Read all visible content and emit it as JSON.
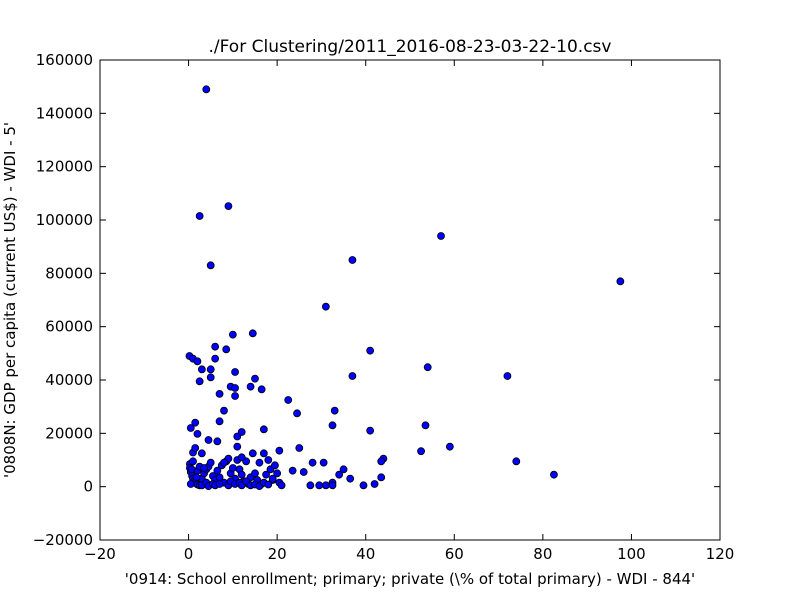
{
  "chart_data": {
    "type": "scatter",
    "title": "./For Clustering/2011_2016-08-23-03-22-10.csv",
    "xlabel": "'0914: School enrollment; primary; private  (\\% of total primary) - WDI - 844'",
    "ylabel": "'0808N: GDP per capita  (current US$) - WDI - 5'",
    "xlim": [
      -20,
      120
    ],
    "ylim": [
      -20000,
      160000
    ],
    "xticks": [
      -20,
      0,
      20,
      40,
      60,
      80,
      100,
      120
    ],
    "yticks": [
      -20000,
      0,
      20000,
      40000,
      60000,
      80000,
      100000,
      120000,
      140000,
      160000
    ],
    "xtick_labels": [
      "−20",
      "0",
      "20",
      "40",
      "60",
      "80",
      "100",
      "120"
    ],
    "ytick_labels": [
      "−20000",
      "0",
      "20000",
      "40000",
      "60000",
      "80000",
      "100000",
      "120000",
      "140000",
      "160000"
    ],
    "grid": false,
    "marker_color": "#0000ff",
    "points": [
      [
        4,
        149000
      ],
      [
        2.5,
        101500
      ],
      [
        9,
        105200
      ],
      [
        5,
        83000
      ],
      [
        37,
        85000
      ],
      [
        57,
        94000
      ],
      [
        97.5,
        77000
      ],
      [
        31,
        67500
      ],
      [
        10,
        57000
      ],
      [
        14.5,
        57500
      ],
      [
        41,
        51000
      ],
      [
        54,
        44800
      ],
      [
        37,
        41500
      ],
      [
        72,
        41500
      ],
      [
        0.2,
        49000
      ],
      [
        1,
        48000
      ],
      [
        2,
        47000
      ],
      [
        6,
        52500
      ],
      [
        6,
        48000
      ],
      [
        8.5,
        51500
      ],
      [
        3,
        44000
      ],
      [
        5,
        44000
      ],
      [
        10.5,
        43000
      ],
      [
        2.5,
        39500
      ],
      [
        5,
        41000
      ],
      [
        15,
        40500
      ],
      [
        9.5,
        37500
      ],
      [
        10.5,
        37000
      ],
      [
        14,
        37500
      ],
      [
        16.5,
        36500
      ],
      [
        7,
        34800
      ],
      [
        10.5,
        34000
      ],
      [
        22.5,
        32500
      ],
      [
        8,
        28500
      ],
      [
        24.5,
        27500
      ],
      [
        33,
        28500
      ],
      [
        41,
        21000
      ],
      [
        53.5,
        23000
      ],
      [
        32.5,
        23000
      ],
      [
        17,
        21500
      ],
      [
        0.5,
        22000
      ],
      [
        7,
        24500
      ],
      [
        1.5,
        24000
      ],
      [
        2,
        19800
      ],
      [
        6.5,
        17000
      ],
      [
        11,
        18800
      ],
      [
        4.5,
        17500
      ],
      [
        12,
        20500
      ],
      [
        11,
        15000
      ],
      [
        20.5,
        13500
      ],
      [
        25,
        14500
      ],
      [
        52.5,
        13300
      ],
      [
        59,
        15000
      ],
      [
        44,
        10500
      ],
      [
        74,
        9500
      ],
      [
        82.5,
        4500
      ],
      [
        43.5,
        9500
      ],
      [
        43.5,
        3500
      ],
      [
        35,
        6500
      ],
      [
        34,
        4500
      ],
      [
        36.5,
        3000
      ],
      [
        42,
        1000
      ],
      [
        39.5,
        500
      ],
      [
        32.5,
        1500
      ],
      [
        32.5,
        500
      ],
      [
        30.5,
        9000
      ],
      [
        28,
        9000
      ],
      [
        26,
        5500
      ],
      [
        23.5,
        6000
      ],
      [
        27.5,
        500
      ],
      [
        29.5,
        500
      ],
      [
        31,
        500
      ],
      [
        3,
        12500
      ],
      [
        1,
        12800
      ],
      [
        1.5,
        14500
      ],
      [
        0.3,
        8500
      ],
      [
        0.3,
        7000
      ],
      [
        0.5,
        5500
      ],
      [
        0.8,
        4000
      ],
      [
        1,
        3000
      ],
      [
        1.2,
        2000
      ],
      [
        1.5,
        1500
      ],
      [
        0.5,
        1000
      ],
      [
        2,
        800
      ],
      [
        2.5,
        500
      ],
      [
        3,
        3000
      ],
      [
        3.5,
        5000
      ],
      [
        4,
        6500
      ],
      [
        4.5,
        7500
      ],
      [
        5,
        9000
      ],
      [
        5.5,
        4000
      ],
      [
        6,
        2500
      ],
      [
        6.5,
        6000
      ],
      [
        7,
        3500
      ],
      [
        7.5,
        8000
      ],
      [
        8,
        1500
      ],
      [
        8.5,
        9500
      ],
      [
        9,
        10500
      ],
      [
        9.5,
        5000
      ],
      [
        10,
        7000
      ],
      [
        10.5,
        3000
      ],
      [
        11,
        10000
      ],
      [
        11.5,
        6500
      ],
      [
        12,
        4500
      ],
      [
        12.5,
        2000
      ],
      [
        13,
        9500
      ],
      [
        13.5,
        1000
      ],
      [
        14,
        3500
      ],
      [
        14.5,
        12500
      ],
      [
        15,
        5000
      ],
      [
        15.5,
        2500
      ],
      [
        16,
        9000
      ],
      [
        16.5,
        1000
      ],
      [
        17,
        12500
      ],
      [
        17.5,
        4500
      ],
      [
        18,
        10000
      ],
      [
        18.5,
        6500
      ],
      [
        19,
        2500
      ],
      [
        19.5,
        8000
      ],
      [
        20,
        5000
      ],
      [
        20.5,
        1500
      ],
      [
        21,
        500
      ],
      [
        3,
        500
      ],
      [
        4,
        1500
      ],
      [
        4.5,
        200
      ],
      [
        5.5,
        1000
      ],
      [
        6,
        500
      ],
      [
        7,
        1000
      ],
      [
        9,
        500
      ],
      [
        9.5,
        2000
      ],
      [
        10.5,
        1000
      ],
      [
        11.5,
        1500
      ],
      [
        12,
        500
      ],
      [
        13,
        2000
      ],
      [
        14,
        500
      ],
      [
        15,
        800
      ],
      [
        16,
        200
      ],
      [
        17,
        1500
      ],
      [
        18,
        800
      ],
      [
        19,
        3000
      ],
      [
        2,
        6000
      ],
      [
        2.5,
        7500
      ],
      [
        1,
        9500
      ],
      [
        3.5,
        7000
      ],
      [
        0.7,
        6500
      ],
      [
        1.8,
        3500
      ],
      [
        8,
        9000
      ],
      [
        12,
        11000
      ]
    ]
  }
}
